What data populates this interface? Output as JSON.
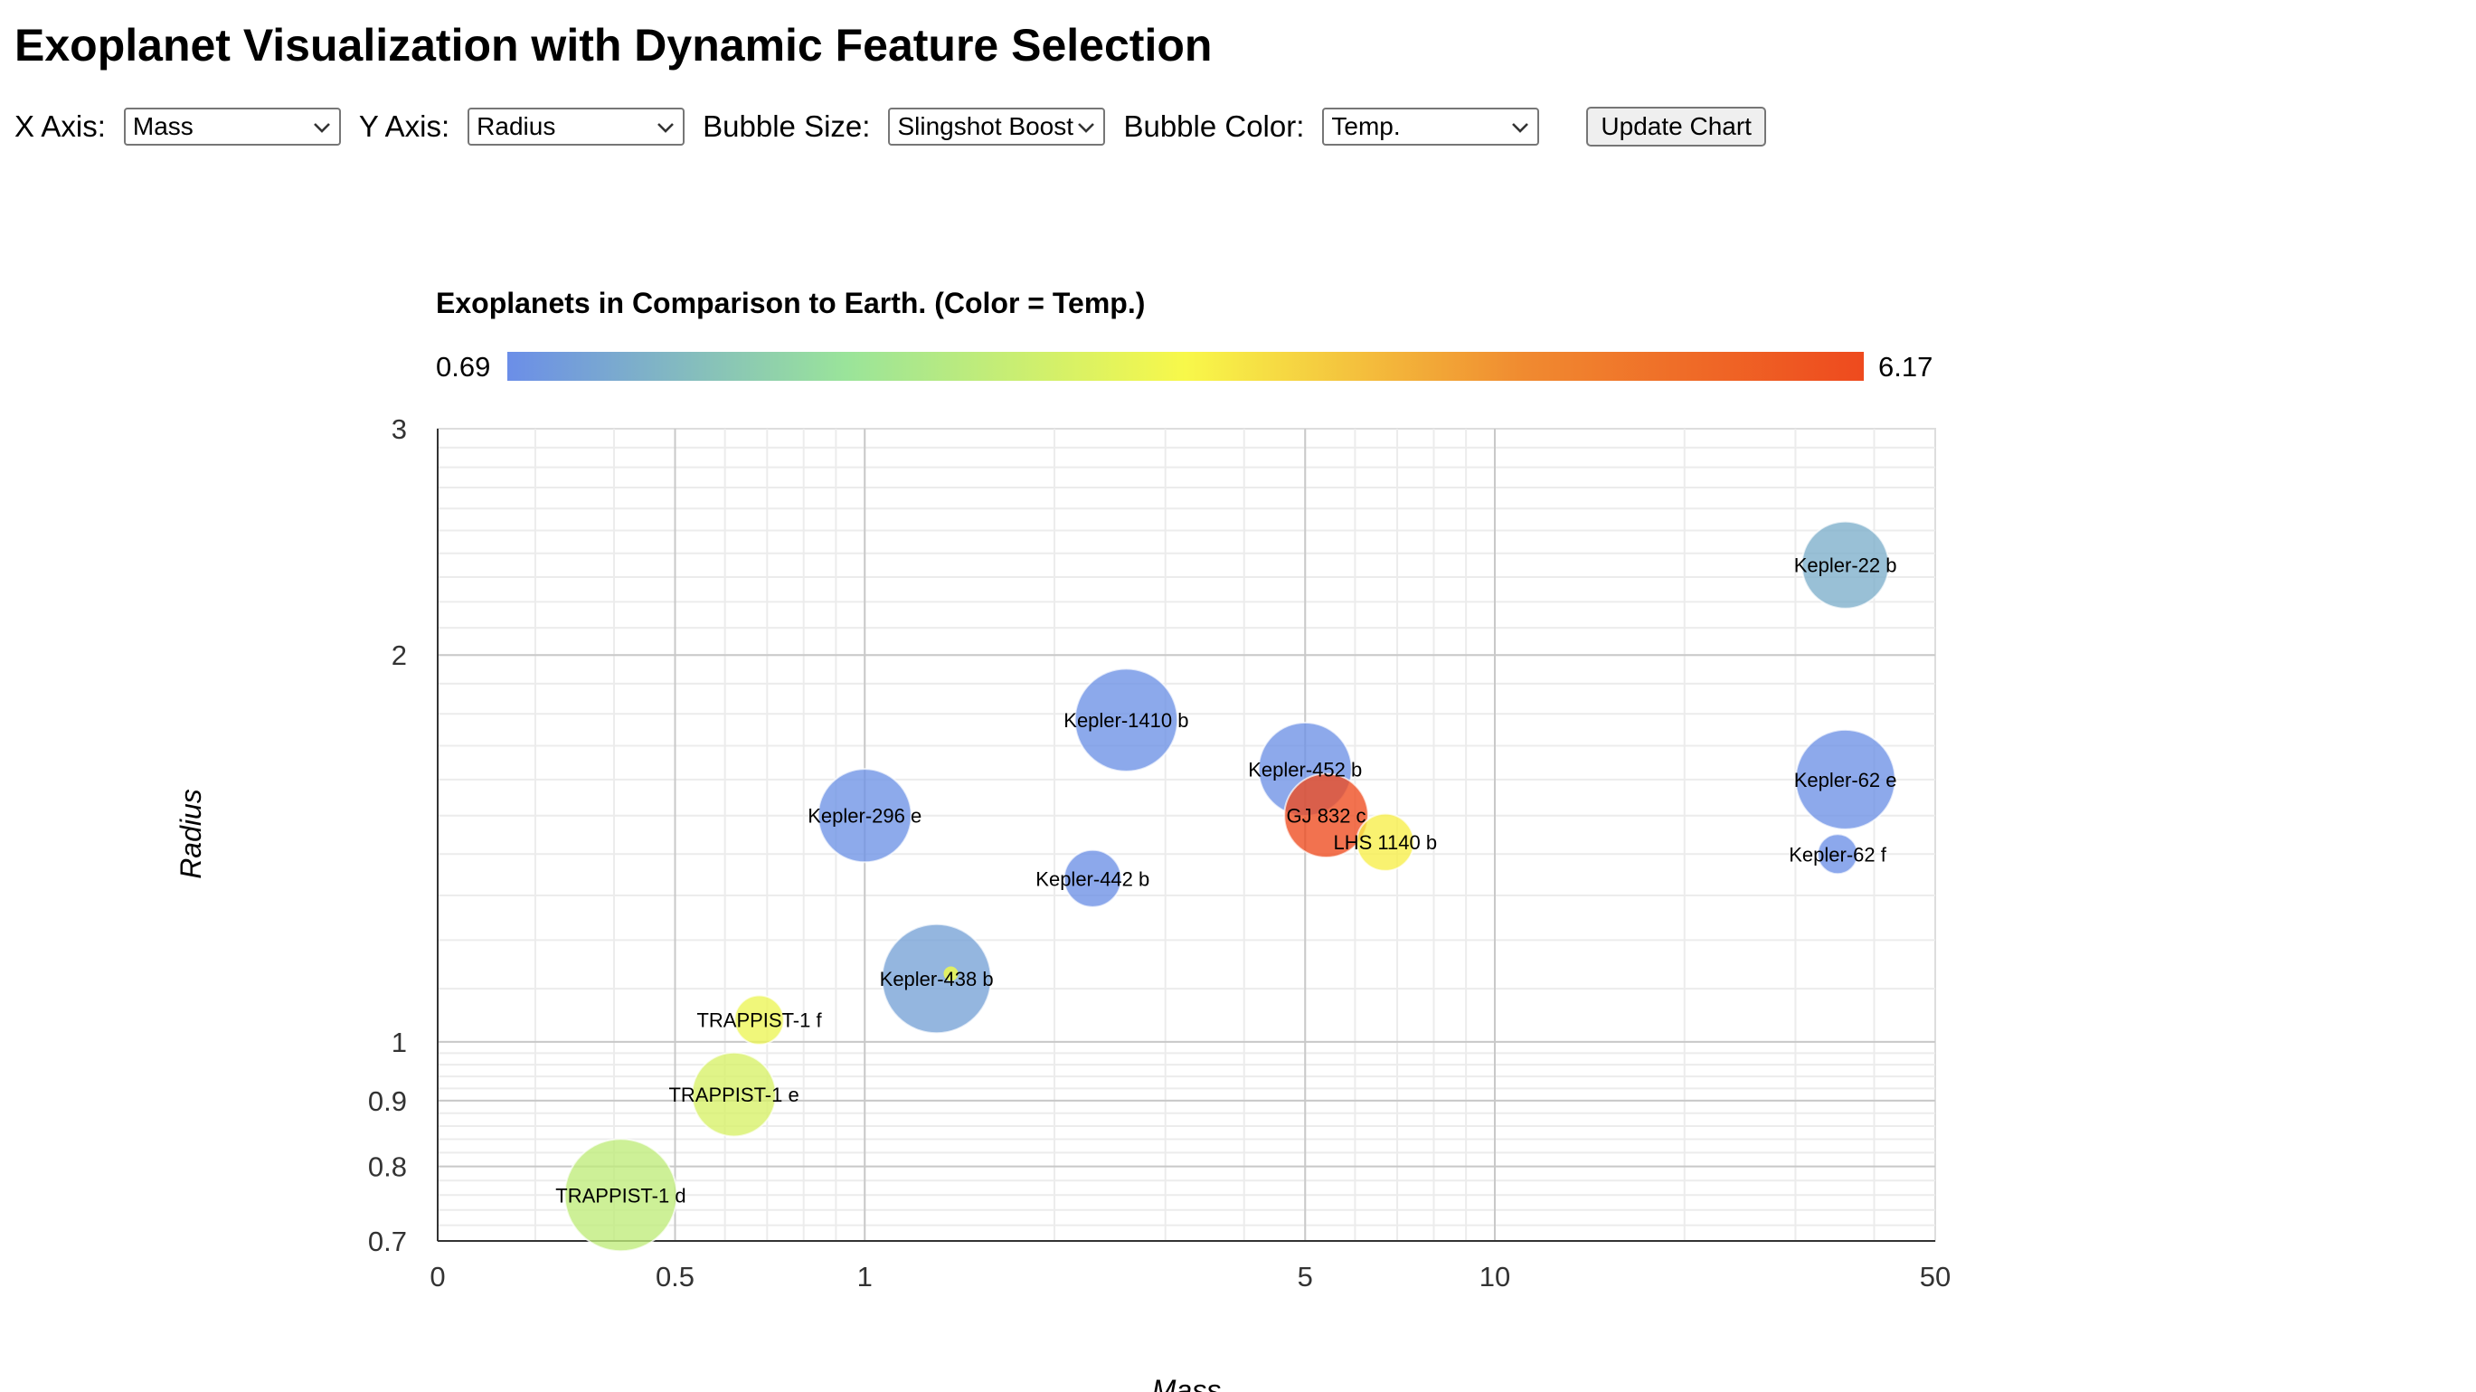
{
  "page": {
    "title": "Exoplanet Visualization with Dynamic Feature Selection"
  },
  "controls": {
    "x_axis": {
      "label": "X Axis:",
      "value": "Mass"
    },
    "y_axis": {
      "label": "Y Axis:",
      "value": "Radius"
    },
    "bubble_size": {
      "label": "Bubble Size:",
      "value": "Slingshot Boost"
    },
    "bubble_color": {
      "label": "Bubble Color:",
      "value": "Temp."
    },
    "update_label": "Update Chart",
    "chevron_icon": "chevron-down-icon"
  },
  "chart_data": {
    "type": "scatter",
    "subtype": "bubble",
    "title": "Exoplanets in Comparison to Earth. (Color = Temp.)",
    "xlabel": "Mass",
    "ylabel": "Radius",
    "x_scale": "log",
    "y_scale": "log",
    "xlim": [
      0.21,
      50
    ],
    "ylim": [
      0.7,
      3
    ],
    "x_ticks": [
      {
        "value": 0.21,
        "label": "0"
      },
      {
        "value": 0.5,
        "label": "0.5"
      },
      {
        "value": 1,
        "label": "1"
      },
      {
        "value": 5,
        "label": "5"
      },
      {
        "value": 10,
        "label": "10"
      },
      {
        "value": 50,
        "label": "50"
      }
    ],
    "y_ticks": [
      {
        "value": 0.7,
        "label": "0.7"
      },
      {
        "value": 0.8,
        "label": "0.8"
      },
      {
        "value": 0.9,
        "label": "0.9"
      },
      {
        "value": 1,
        "label": "1"
      },
      {
        "value": 2,
        "label": "2"
      },
      {
        "value": 3,
        "label": "3"
      }
    ],
    "grid": true,
    "colorbar": {
      "position": "top",
      "min": 0.69,
      "max": 6.17,
      "min_label": "0.69",
      "max_label": "6.17",
      "colors": [
        "#6b8ee8",
        "#9ae49a",
        "#f8f84a",
        "#f08a30",
        "#ee4a1e"
      ]
    },
    "points": [
      {
        "name": "TRAPPIST-1 d",
        "x": 0.41,
        "y": 0.76,
        "size": 5.2,
        "color_value": 2.6
      },
      {
        "name": "TRAPPIST-1 e",
        "x": 0.62,
        "y": 0.91,
        "size": 3.4,
        "color_value": 2.95
      },
      {
        "name": "TRAPPIST-1 f",
        "x": 0.68,
        "y": 1.04,
        "size": 1.2,
        "color_value": 3.25
      },
      {
        "name": "Kepler-438 b",
        "x": 1.3,
        "y": 1.12,
        "size": 5.0,
        "color_value": 1.0
      },
      {
        "name": "Kepler-296 e",
        "x": 1.0,
        "y": 1.5,
        "size": 4.0,
        "color_value": 0.75
      },
      {
        "name": "Kepler-442 b",
        "x": 2.3,
        "y": 1.34,
        "size": 1.7,
        "color_value": 0.72
      },
      {
        "name": "Kepler-1410 b",
        "x": 2.6,
        "y": 1.78,
        "size": 4.6,
        "color_value": 0.73
      },
      {
        "name": "Kepler-452 b",
        "x": 5.0,
        "y": 1.63,
        "size": 4.0,
        "color_value": 0.74
      },
      {
        "name": "GJ 832 c",
        "x": 5.4,
        "y": 1.5,
        "size": 3.4,
        "color_value": 6.17
      },
      {
        "name": "LHS 1140 b",
        "x": 6.7,
        "y": 1.43,
        "size": 1.7,
        "color_value": 3.55
      },
      {
        "name": "Kepler-22 b",
        "x": 36.0,
        "y": 2.35,
        "size": 3.6,
        "color_value": 1.2
      },
      {
        "name": "Kepler-62 e",
        "x": 36.0,
        "y": 1.6,
        "size": 4.4,
        "color_value": 0.74
      },
      {
        "name": "Kepler-62 f",
        "x": 35.0,
        "y": 1.4,
        "size": 0.6,
        "color_value": 0.7
      }
    ],
    "inner_marker": {
      "x": 1.37,
      "y": 1.13,
      "color_value": 3.2
    }
  }
}
